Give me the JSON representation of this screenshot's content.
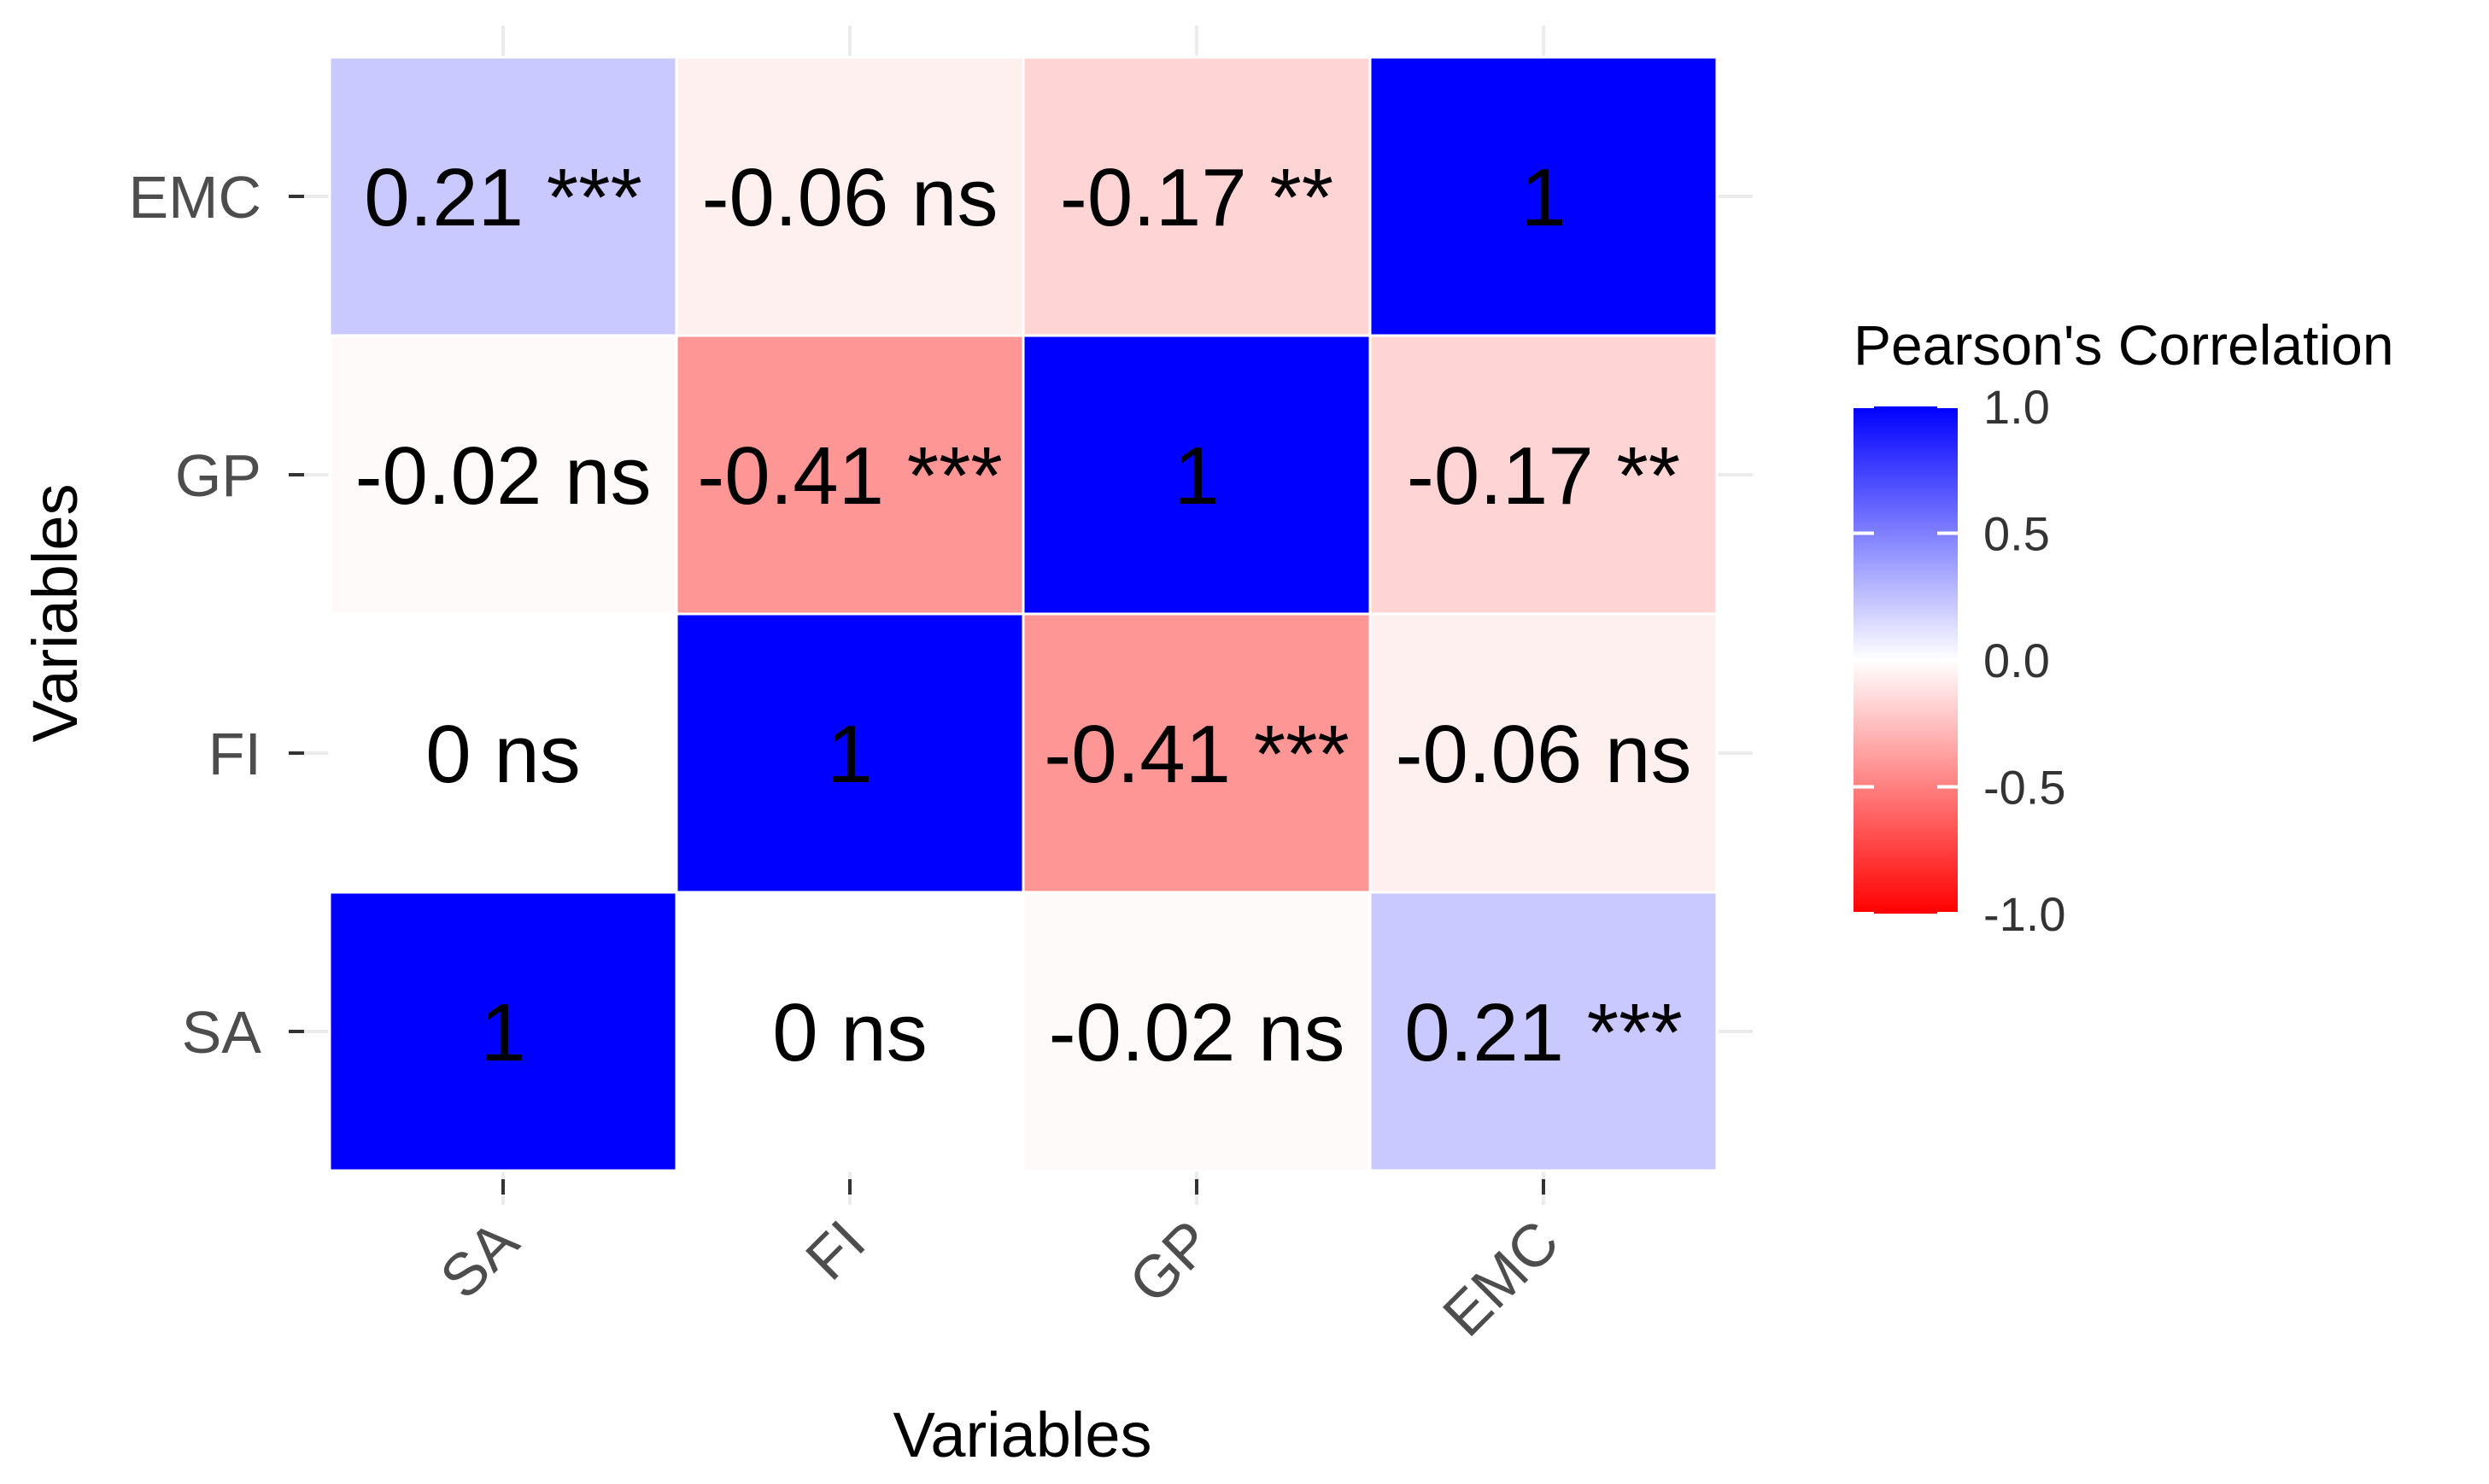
{
  "chart_data": {
    "type": "heatmap",
    "x_categories": [
      "SA",
      "FI",
      "GP",
      "EMC"
    ],
    "y_categories": [
      "SA",
      "FI",
      "GP",
      "EMC"
    ],
    "xlabel": "Variables",
    "ylabel": "Variables",
    "cells": [
      {
        "x": "SA",
        "y": "SA",
        "value": 1,
        "label": "1"
      },
      {
        "x": "FI",
        "y": "SA",
        "value": 0,
        "label": "0 ns"
      },
      {
        "x": "GP",
        "y": "SA",
        "value": -0.02,
        "label": "-0.02 ns"
      },
      {
        "x": "EMC",
        "y": "SA",
        "value": 0.21,
        "label": "0.21 ***"
      },
      {
        "x": "SA",
        "y": "FI",
        "value": 0,
        "label": "0 ns"
      },
      {
        "x": "FI",
        "y": "FI",
        "value": 1,
        "label": "1"
      },
      {
        "x": "GP",
        "y": "FI",
        "value": -0.41,
        "label": "-0.41 ***"
      },
      {
        "x": "EMC",
        "y": "FI",
        "value": -0.06,
        "label": "-0.06 ns"
      },
      {
        "x": "SA",
        "y": "GP",
        "value": -0.02,
        "label": "-0.02 ns"
      },
      {
        "x": "FI",
        "y": "GP",
        "value": -0.41,
        "label": "-0.41 ***"
      },
      {
        "x": "GP",
        "y": "GP",
        "value": 1,
        "label": "1"
      },
      {
        "x": "EMC",
        "y": "GP",
        "value": -0.17,
        "label": "-0.17 **"
      },
      {
        "x": "SA",
        "y": "EMC",
        "value": 0.21,
        "label": "0.21 ***"
      },
      {
        "x": "FI",
        "y": "EMC",
        "value": -0.06,
        "label": "-0.06 ns"
      },
      {
        "x": "GP",
        "y": "EMC",
        "value": -0.17,
        "label": "-0.17 **"
      },
      {
        "x": "EMC",
        "y": "EMC",
        "value": 1,
        "label": "1"
      }
    ],
    "legend": {
      "title": "Pearson's Correlation",
      "ticks": [
        {
          "value": 1.0,
          "label": "1.0"
        },
        {
          "value": 0.5,
          "label": "0.5"
        },
        {
          "value": 0.0,
          "label": "0.0"
        },
        {
          "value": -0.5,
          "label": "-0.5"
        },
        {
          "value": -1.0,
          "label": "-1.0"
        }
      ],
      "limits": [
        -1,
        1
      ],
      "low_color": "#ff0000",
      "mid_color": "#ffffff",
      "high_color": "#0000ff"
    }
  }
}
